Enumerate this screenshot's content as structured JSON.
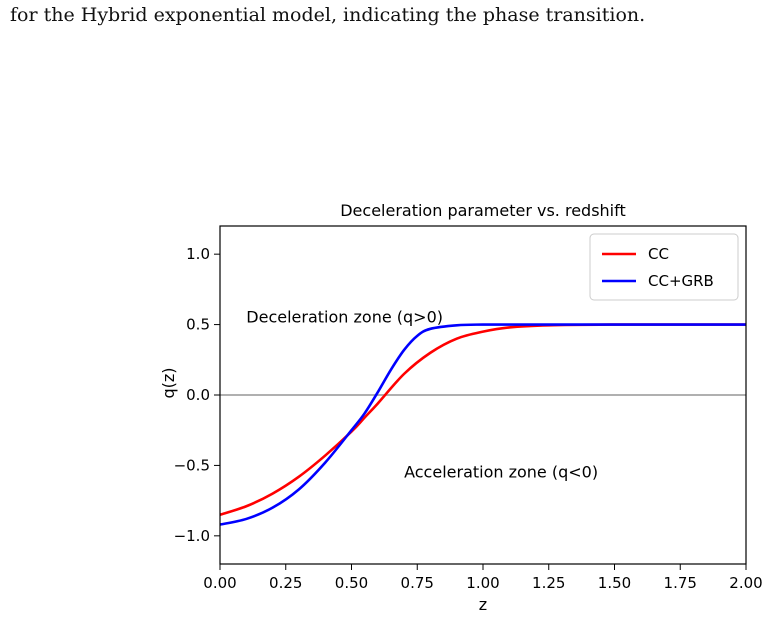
{
  "caption": "for the Hybrid exponential model, indicating the phase transition.",
  "chart_data": {
    "type": "line",
    "title": "Deceleration parameter vs. redshift",
    "xlabel": "z",
    "ylabel": "q(z)",
    "xlim": [
      0,
      2
    ],
    "ylim": [
      -1.2,
      1.2
    ],
    "xticks": [
      "0.00",
      "0.25",
      "0.50",
      "0.75",
      "1.00",
      "1.25",
      "1.50",
      "1.75",
      "2.00"
    ],
    "yticks": [
      "1.0",
      "0.5",
      "0.0",
      "−0.5",
      "−1.0"
    ],
    "xtick_values": [
      0,
      0.25,
      0.5,
      0.75,
      1.0,
      1.25,
      1.5,
      1.75,
      2.0
    ],
    "ytick_values": [
      1.0,
      0.5,
      0.0,
      -0.5,
      -1.0
    ],
    "reference_line_y": 0,
    "legend_position": "top-right",
    "series": [
      {
        "name": "CC",
        "color": "#ff0000",
        "x": [
          0.0,
          0.1,
          0.2,
          0.3,
          0.4,
          0.5,
          0.55,
          0.6,
          0.7,
          0.8,
          0.9,
          1.0,
          1.1,
          1.25,
          1.5,
          1.75,
          2.0
        ],
        "y": [
          -0.85,
          -0.79,
          -0.7,
          -0.58,
          -0.43,
          -0.26,
          -0.16,
          -0.06,
          0.15,
          0.3,
          0.4,
          0.45,
          0.48,
          0.495,
          0.5,
          0.5,
          0.5
        ]
      },
      {
        "name": "CC+GRB",
        "color": "#0000ff",
        "x": [
          0.0,
          0.1,
          0.2,
          0.3,
          0.4,
          0.5,
          0.55,
          0.6,
          0.65,
          0.7,
          0.75,
          0.8,
          0.9,
          1.0,
          1.25,
          1.5,
          1.75,
          2.0
        ],
        "y": [
          -0.92,
          -0.88,
          -0.8,
          -0.67,
          -0.48,
          -0.25,
          -0.13,
          0.02,
          0.18,
          0.32,
          0.42,
          0.47,
          0.495,
          0.5,
          0.5,
          0.5,
          0.5,
          0.5
        ]
      }
    ],
    "annotations": [
      {
        "text": "Deceleration zone (q>0)",
        "x": 0.1,
        "y": 0.55
      },
      {
        "text": "Acceleration zone (q<0)",
        "x": 0.7,
        "y": -0.55
      }
    ]
  }
}
